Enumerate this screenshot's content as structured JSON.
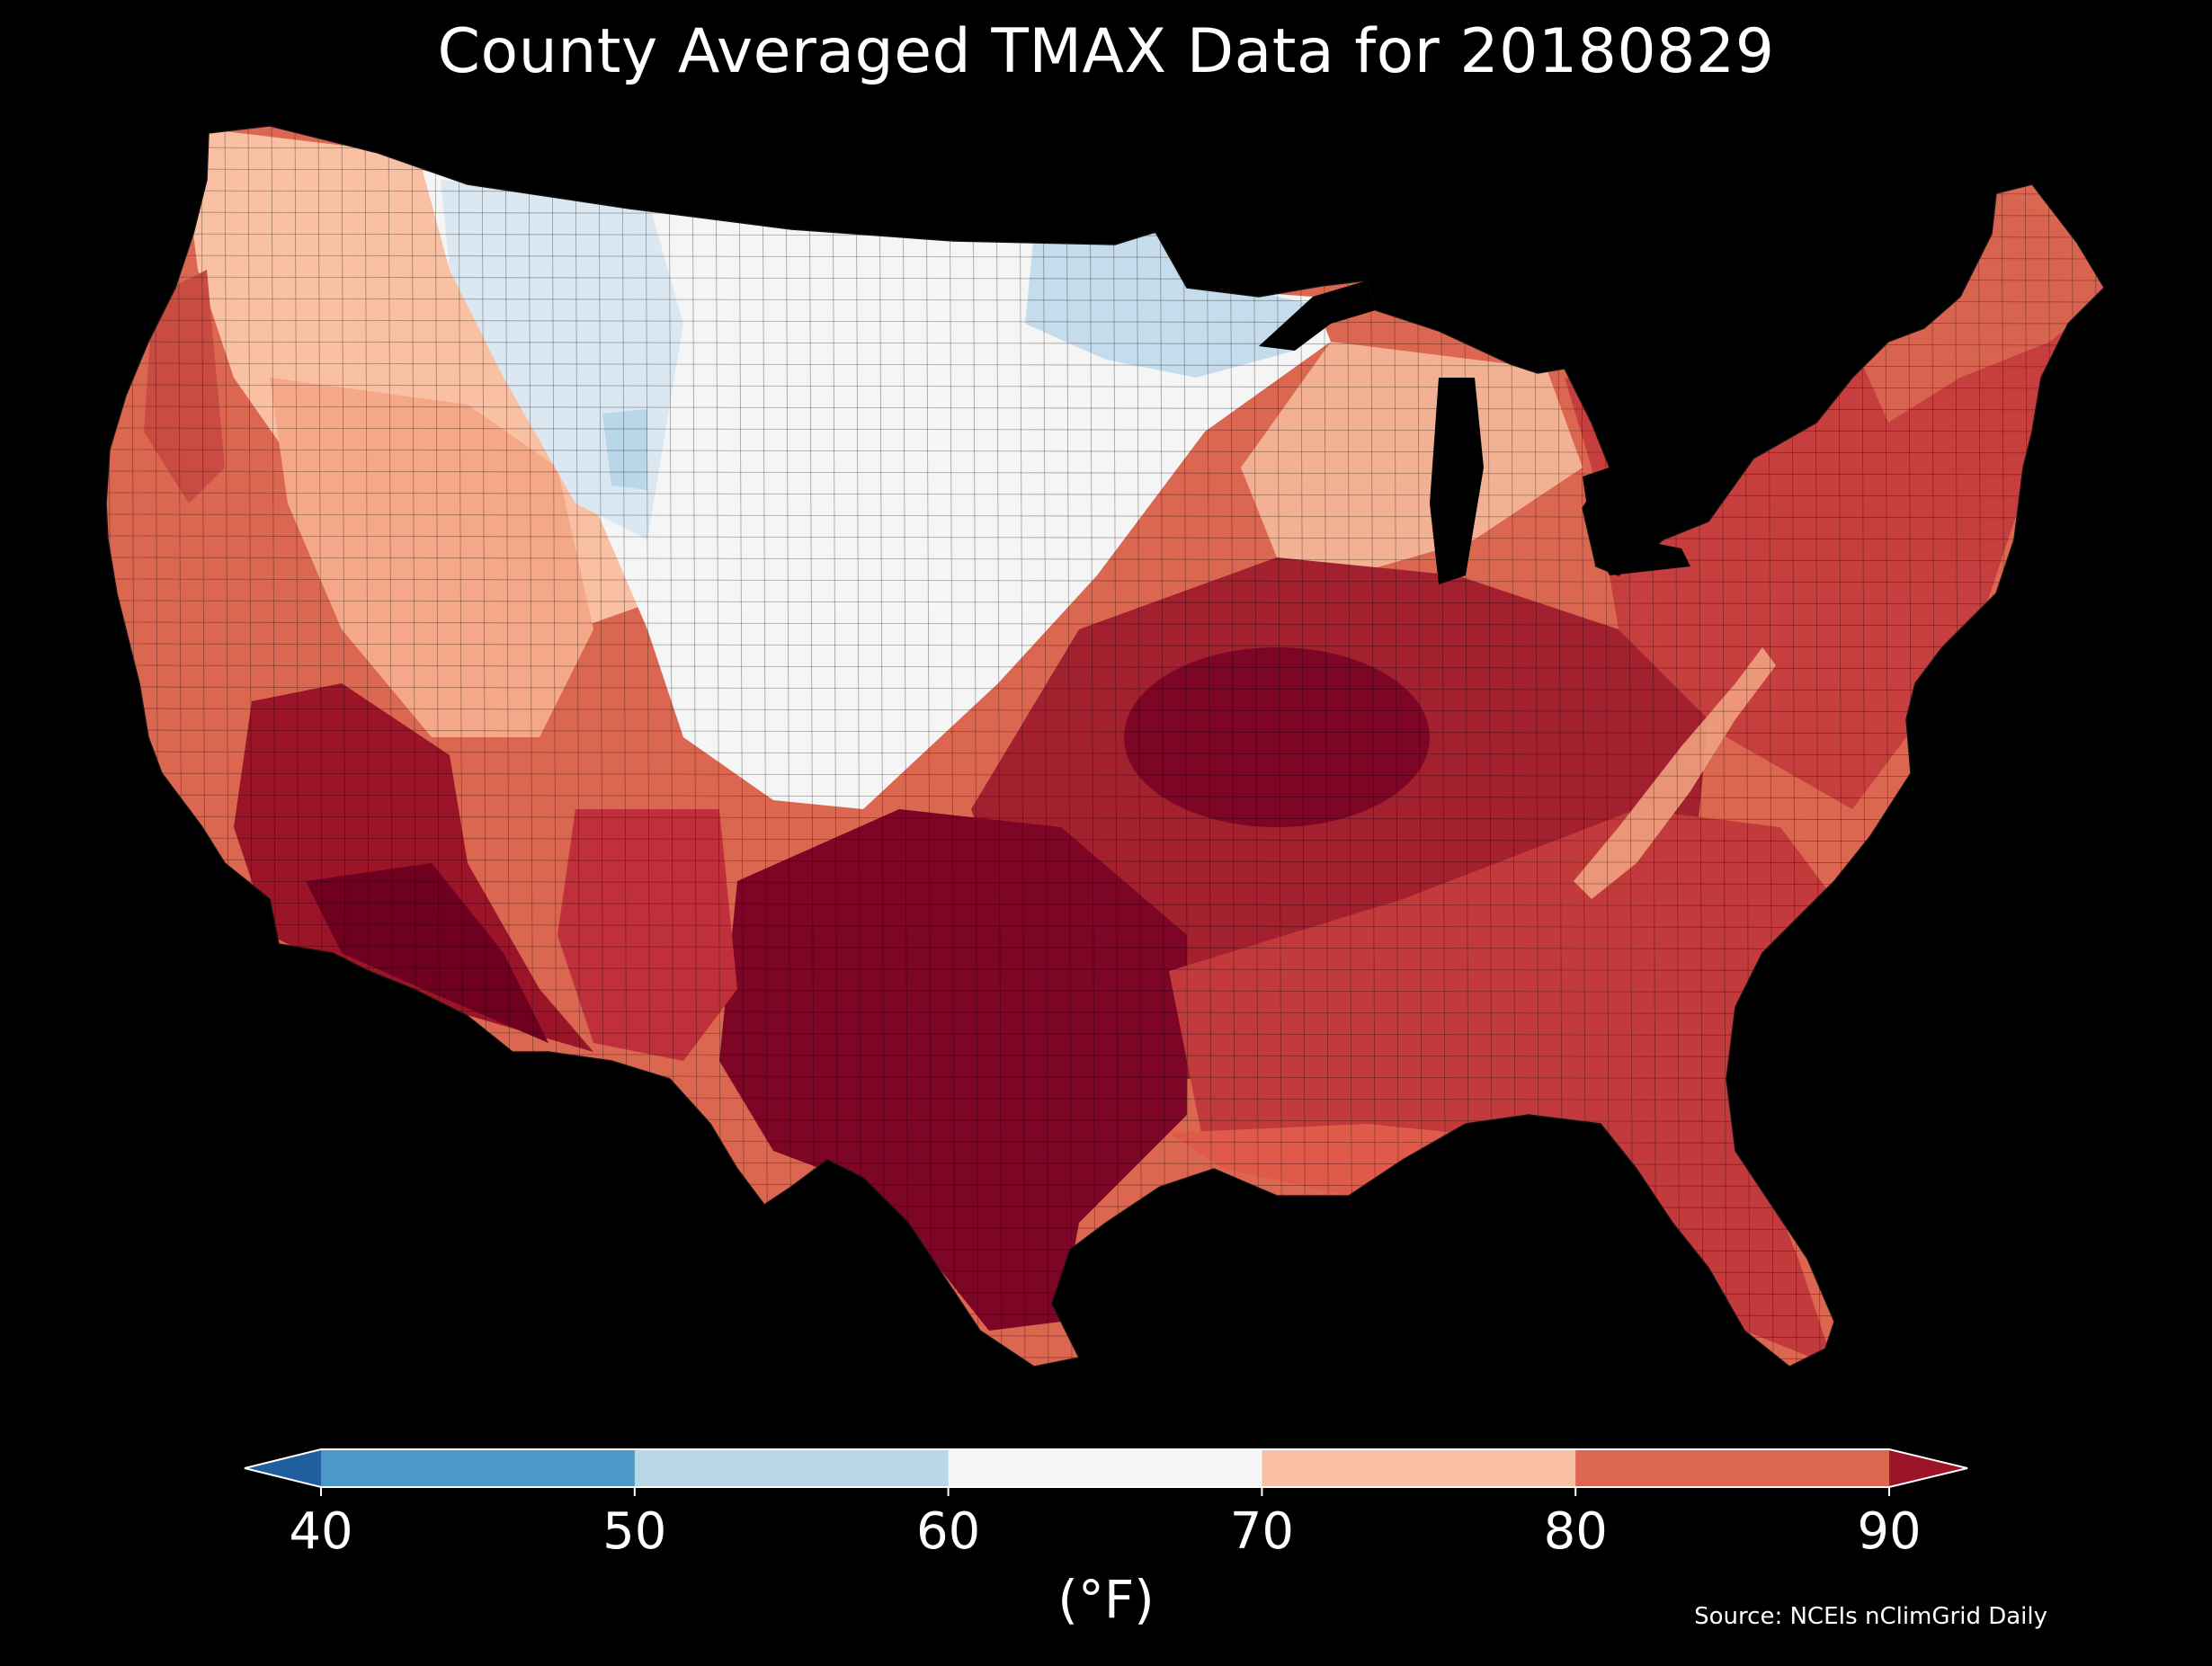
{
  "title": "County Averaged TMAX Data for 20180829",
  "source": "Source: NCEIs nClimGrid Daily",
  "colorbar": {
    "unit": "(°F)",
    "ticks": [
      "40",
      "50",
      "60",
      "70",
      "80",
      "90"
    ],
    "bins": [
      {
        "range": "<40",
        "color": "#1f5fa0"
      },
      {
        "range": "40-50",
        "color": "#4b98c9"
      },
      {
        "range": "50-60",
        "color": "#b8d8ea"
      },
      {
        "range": "60-70",
        "color": "#f5f5f5"
      },
      {
        "range": "70-80",
        "color": "#f9c0a3"
      },
      {
        "range": "80-90",
        "color": "#dc6751"
      },
      {
        "range": ">90",
        "color": "#9b1427"
      }
    ]
  },
  "regions": [
    {
      "name": "pacific-coast",
      "tmax_bin": "80-90",
      "color": "#dc6751"
    },
    {
      "name": "northwest-interior",
      "tmax_bin": "70-80",
      "color": "#f9c0a3"
    },
    {
      "name": "northern-plains",
      "tmax_bin": "60-70",
      "color": "#f5f5f5"
    },
    {
      "name": "montana-idaho-cool",
      "tmax_bin": "50-60",
      "color": "#dbe8f2"
    },
    {
      "name": "minnesota-cool",
      "tmax_bin": "50-60",
      "color": "#c5dcec"
    },
    {
      "name": "great-basin",
      "tmax_bin": "70-80",
      "color": "#f5a888"
    },
    {
      "name": "southwest-desert",
      "tmax_bin": ">90",
      "color": "#6f0020"
    },
    {
      "name": "southern-plains-texas",
      "tmax_bin": ">90",
      "color": "#7d0525"
    },
    {
      "name": "central-midwest",
      "tmax_bin": "80-90",
      "color": "#a3202e"
    },
    {
      "name": "southeast",
      "tmax_bin": "80-90",
      "color": "#c23a3c"
    },
    {
      "name": "northeast",
      "tmax_bin": "80-90",
      "color": "#c73e3f"
    },
    {
      "name": "new-england-north",
      "tmax_bin": "80-90",
      "color": "#d86450"
    },
    {
      "name": "appalachian-ridge",
      "tmax_bin": "70-80",
      "color": "#f0a17f"
    }
  ]
}
